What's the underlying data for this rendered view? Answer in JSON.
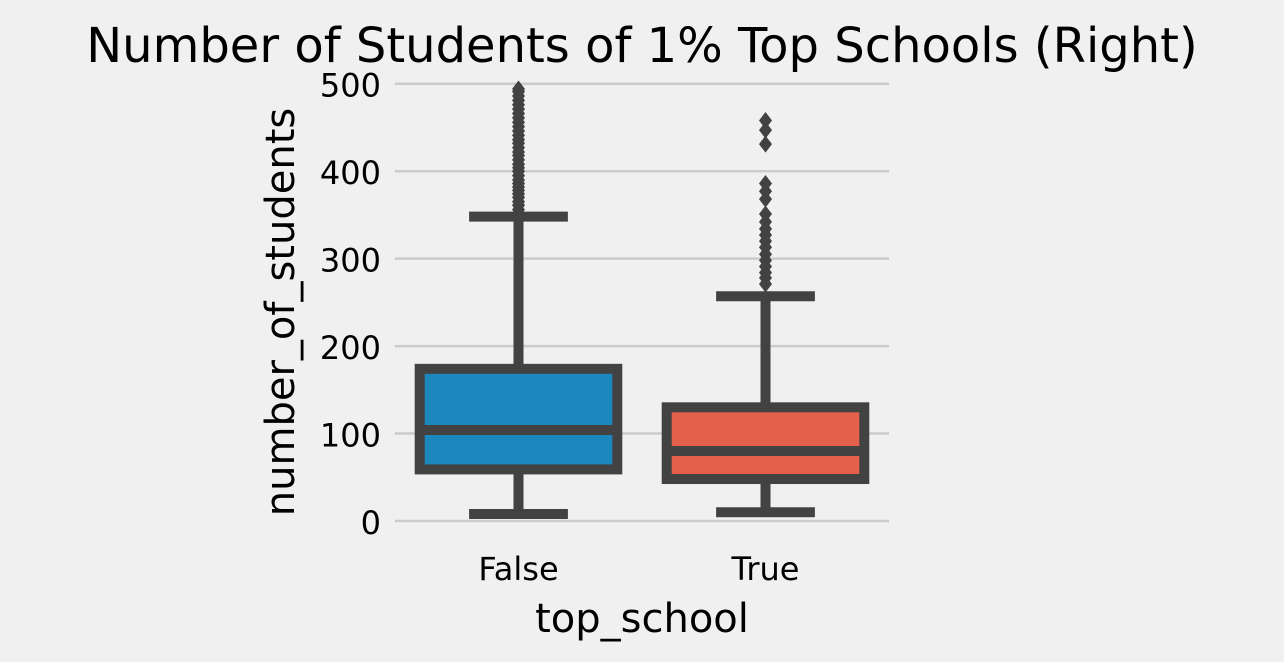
{
  "chart_data": {
    "type": "box",
    "title": "Number of Students of 1% Top Schools (Right)",
    "xlabel": "top_school",
    "ylabel": "number_of_students",
    "categories": [
      "False",
      "True"
    ],
    "ylim": [
      -8,
      510
    ],
    "yticks": [
      0,
      100,
      200,
      300,
      400,
      500
    ],
    "grid": "horizontal",
    "boxes": [
      {
        "category": "False",
        "whisker_low": 8,
        "q1": 59,
        "median": 104,
        "q3": 174,
        "whisker_high": 348,
        "outliers": [
          356,
          361,
          365,
          370,
          374,
          378,
          382,
          386,
          390,
          395,
          400,
          404,
          408,
          413,
          418,
          422,
          427,
          432,
          436,
          441,
          446,
          451,
          456,
          461,
          466,
          471,
          476,
          481,
          486,
          491,
          494
        ]
      },
      {
        "category": "True",
        "whisker_low": 10,
        "q1": 48,
        "median": 80,
        "q3": 130,
        "whisker_high": 257,
        "outliers": [
          271,
          278,
          284,
          291,
          298,
          305,
          313,
          320,
          327,
          334,
          342,
          351,
          368,
          377,
          386,
          431,
          447,
          458
        ]
      }
    ],
    "colors": {
      "False": "#1b87bd",
      "True": "#e5604a",
      "lines": "#424242",
      "grid": "#cbcbcb",
      "background": "#f0f0f0"
    }
  }
}
